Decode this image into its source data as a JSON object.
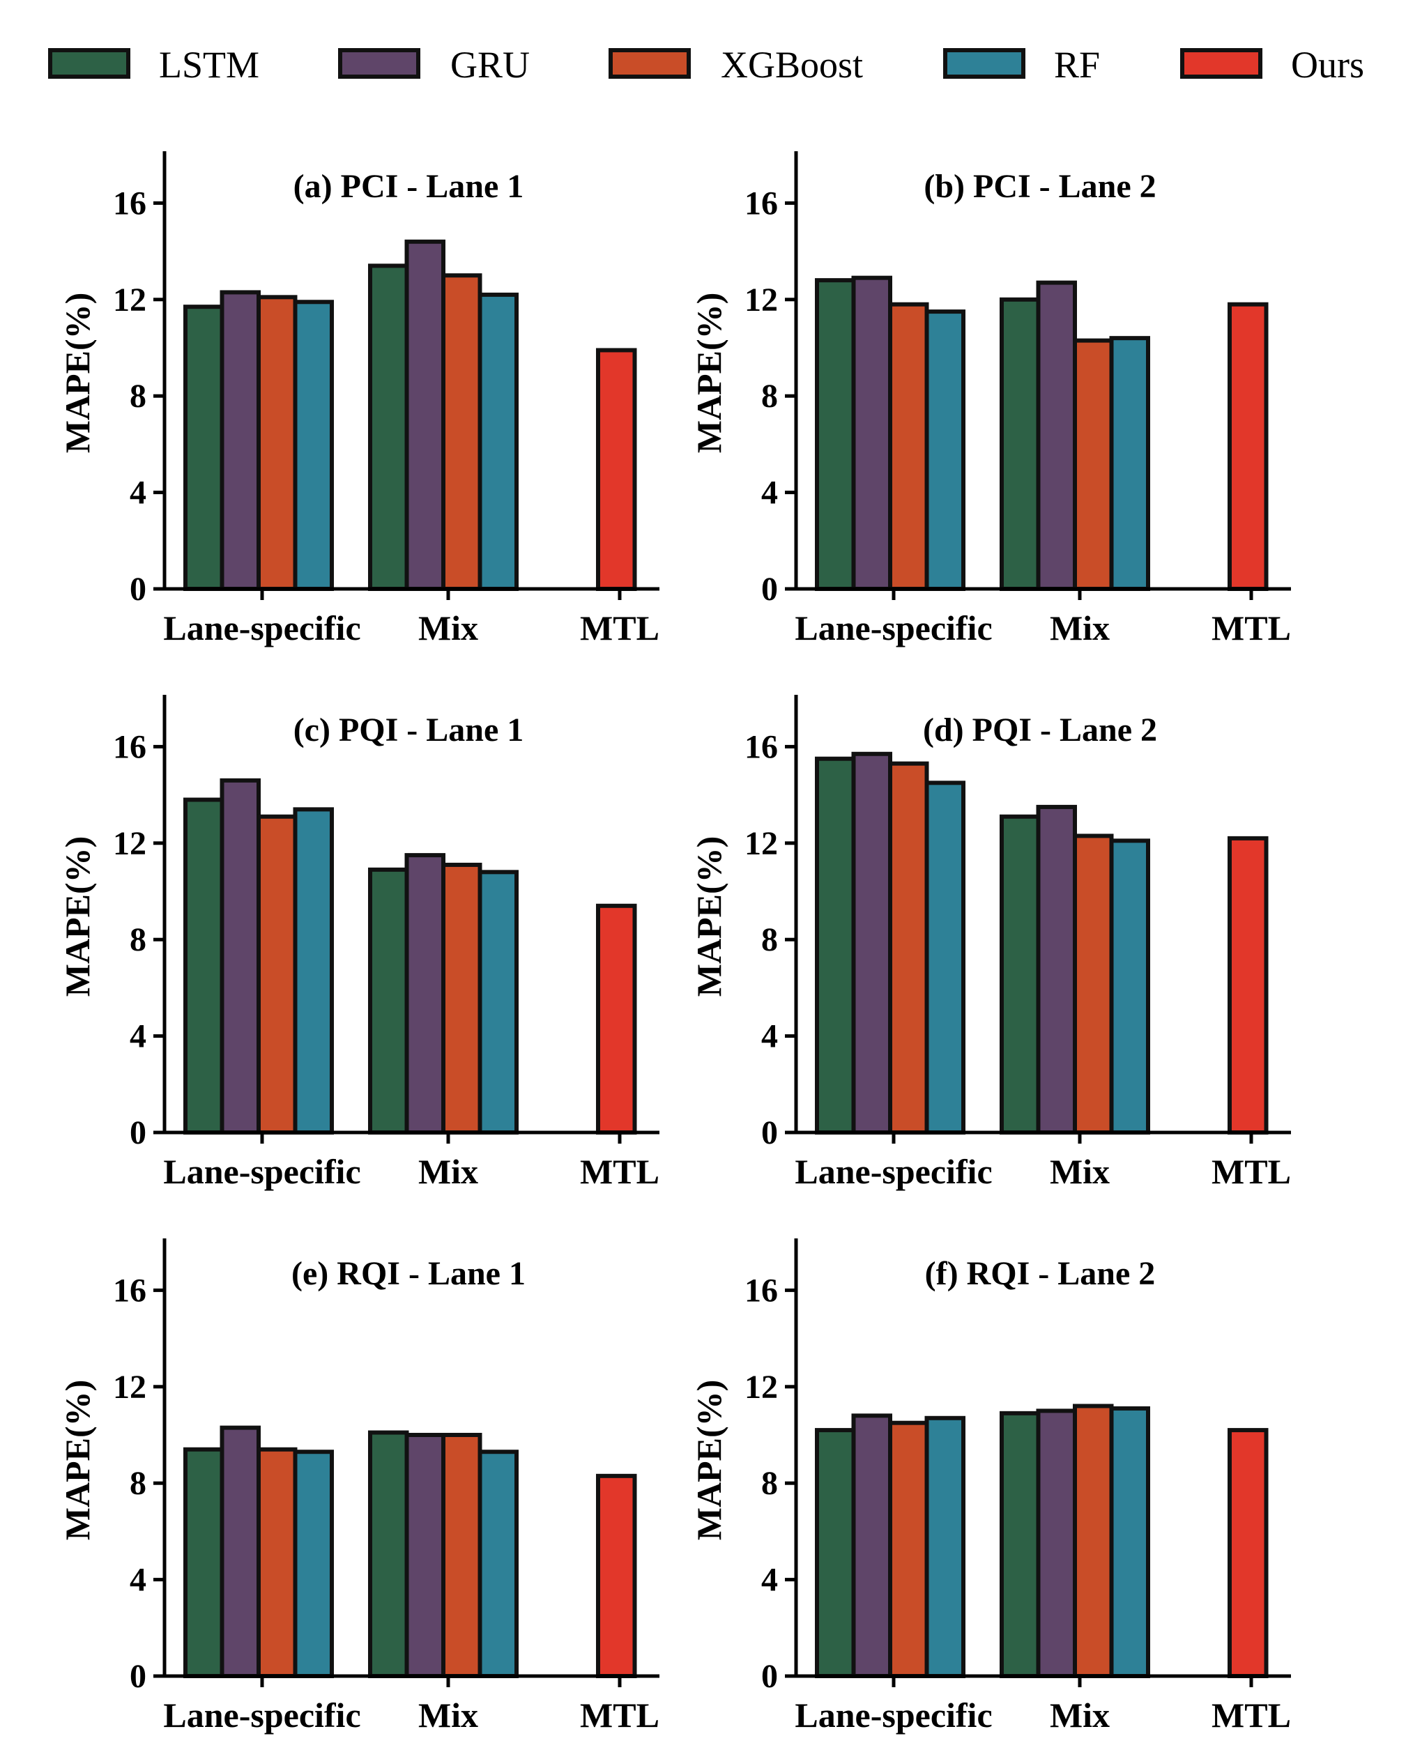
{
  "legend": [
    {
      "name": "LSTM",
      "color": "#2d6146"
    },
    {
      "name": "GRU",
      "color": "#5f4569"
    },
    {
      "name": "XGBoost",
      "color": "#c94d28"
    },
    {
      "name": "RF",
      "color": "#2e8197"
    },
    {
      "name": "Ours",
      "color": "#e2372a"
    }
  ],
  "chart_data": [
    {
      "type": "bar",
      "title": "(a) PCI - Lane 1",
      "ylabel": "MAPE(%)",
      "ylim": [
        0,
        18
      ],
      "yticks": [
        0,
        4,
        8,
        12,
        16
      ],
      "categories": [
        "Lane-specific",
        "Mix",
        "MTL"
      ],
      "series": [
        {
          "name": "LSTM",
          "values": [
            11.7,
            13.4,
            null
          ]
        },
        {
          "name": "GRU",
          "values": [
            12.3,
            14.4,
            null
          ]
        },
        {
          "name": "XGBoost",
          "values": [
            12.1,
            13.0,
            null
          ]
        },
        {
          "name": "RF",
          "values": [
            11.9,
            12.2,
            null
          ]
        },
        {
          "name": "Ours",
          "values": [
            null,
            null,
            9.9
          ]
        }
      ]
    },
    {
      "type": "bar",
      "title": "(b) PCI - Lane 2",
      "ylabel": "MAPE(%)",
      "ylim": [
        0,
        18
      ],
      "yticks": [
        0,
        4,
        8,
        12,
        16
      ],
      "categories": [
        "Lane-specific",
        "Mix",
        "MTL"
      ],
      "series": [
        {
          "name": "LSTM",
          "values": [
            12.8,
            12.0,
            null
          ]
        },
        {
          "name": "GRU",
          "values": [
            12.9,
            12.7,
            null
          ]
        },
        {
          "name": "XGBoost",
          "values": [
            11.8,
            10.3,
            null
          ]
        },
        {
          "name": "RF",
          "values": [
            11.5,
            10.4,
            null
          ]
        },
        {
          "name": "Ours",
          "values": [
            null,
            null,
            11.8
          ]
        }
      ]
    },
    {
      "type": "bar",
      "title": "(c) PQI - Lane 1",
      "ylabel": "MAPE(%)",
      "ylim": [
        0,
        18
      ],
      "yticks": [
        0,
        4,
        8,
        12,
        16
      ],
      "categories": [
        "Lane-specific",
        "Mix",
        "MTL"
      ],
      "series": [
        {
          "name": "LSTM",
          "values": [
            13.8,
            10.9,
            null
          ]
        },
        {
          "name": "GRU",
          "values": [
            14.6,
            11.5,
            null
          ]
        },
        {
          "name": "XGBoost",
          "values": [
            13.1,
            11.1,
            null
          ]
        },
        {
          "name": "RF",
          "values": [
            13.4,
            10.8,
            null
          ]
        },
        {
          "name": "Ours",
          "values": [
            null,
            null,
            9.4
          ]
        }
      ]
    },
    {
      "type": "bar",
      "title": "(d) PQI - Lane 2",
      "ylabel": "MAPE(%)",
      "ylim": [
        0,
        18
      ],
      "yticks": [
        0,
        4,
        8,
        12,
        16
      ],
      "categories": [
        "Lane-specific",
        "Mix",
        "MTL"
      ],
      "series": [
        {
          "name": "LSTM",
          "values": [
            15.5,
            13.1,
            null
          ]
        },
        {
          "name": "GRU",
          "values": [
            15.7,
            13.5,
            null
          ]
        },
        {
          "name": "XGBoost",
          "values": [
            15.3,
            12.3,
            null
          ]
        },
        {
          "name": "RF",
          "values": [
            14.5,
            12.1,
            null
          ]
        },
        {
          "name": "Ours",
          "values": [
            null,
            null,
            12.2
          ]
        }
      ]
    },
    {
      "type": "bar",
      "title": "(e) RQI - Lane 1",
      "ylabel": "MAPE(%)",
      "ylim": [
        0,
        18
      ],
      "yticks": [
        0,
        4,
        8,
        12,
        16
      ],
      "categories": [
        "Lane-specific",
        "Mix",
        "MTL"
      ],
      "series": [
        {
          "name": "LSTM",
          "values": [
            9.4,
            10.1,
            null
          ]
        },
        {
          "name": "GRU",
          "values": [
            10.3,
            10.0,
            null
          ]
        },
        {
          "name": "XGBoost",
          "values": [
            9.4,
            10.0,
            null
          ]
        },
        {
          "name": "RF",
          "values": [
            9.3,
            9.3,
            null
          ]
        },
        {
          "name": "Ours",
          "values": [
            null,
            null,
            8.3
          ]
        }
      ]
    },
    {
      "type": "bar",
      "title": "(f) RQI - Lane 2",
      "ylabel": "MAPE(%)",
      "ylim": [
        0,
        18
      ],
      "yticks": [
        0,
        4,
        8,
        12,
        16
      ],
      "categories": [
        "Lane-specific",
        "Mix",
        "MTL"
      ],
      "series": [
        {
          "name": "LSTM",
          "values": [
            10.2,
            10.9,
            null
          ]
        },
        {
          "name": "GRU",
          "values": [
            10.8,
            11.0,
            null
          ]
        },
        {
          "name": "XGBoost",
          "values": [
            10.5,
            11.2,
            null
          ]
        },
        {
          "name": "RF",
          "values": [
            10.7,
            11.1,
            null
          ]
        },
        {
          "name": "Ours",
          "values": [
            null,
            null,
            10.2
          ]
        }
      ]
    }
  ]
}
